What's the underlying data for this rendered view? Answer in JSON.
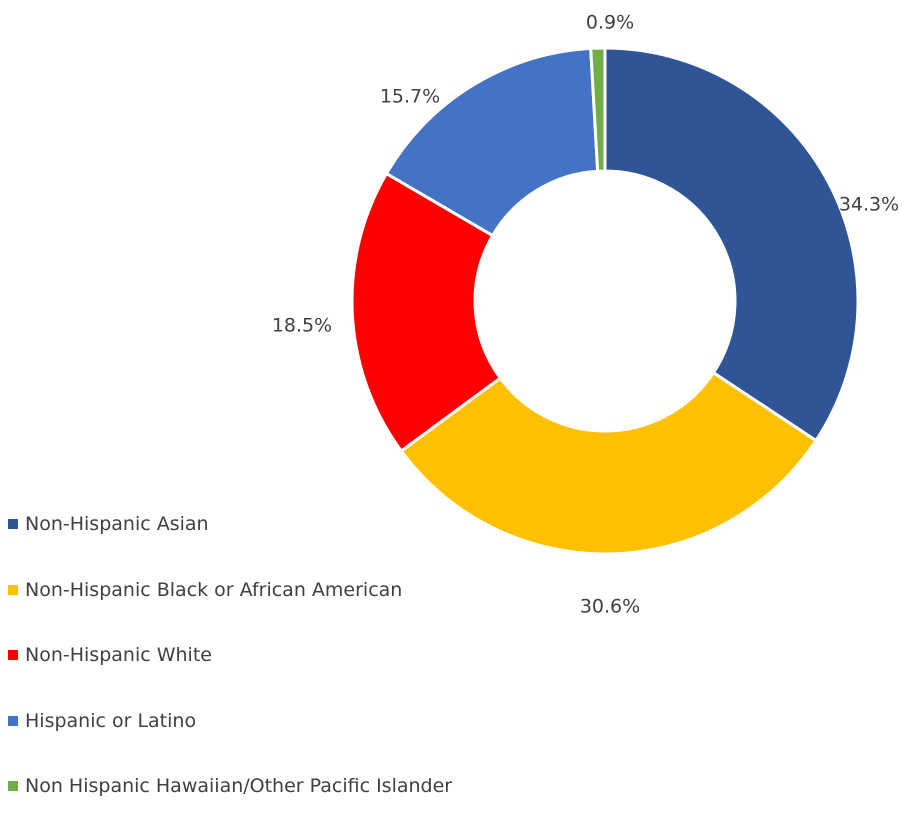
{
  "chart_data": {
    "type": "pie",
    "variant": "donut",
    "title": "",
    "legend_position": "left-bottom",
    "slices": [
      {
        "label": "Non-Hispanic Asian",
        "value": 34.3,
        "display": "34.3%",
        "color": "#2F5597"
      },
      {
        "label": "Non-Hispanic Black or African American",
        "value": 30.6,
        "display": "30.6%",
        "color": "#FFC000"
      },
      {
        "label": "Non-Hispanic White",
        "value": 18.5,
        "display": "18.5%",
        "color": "#FF0000"
      },
      {
        "label": "Hispanic or Latino",
        "value": 15.7,
        "display": "15.7%",
        "color": "#4472C4"
      },
      {
        "label": "Non Hispanic Hawaiian/Other Pacific Islander",
        "value": 0.9,
        "display": "0.9%",
        "color": "#70AD47"
      }
    ]
  }
}
